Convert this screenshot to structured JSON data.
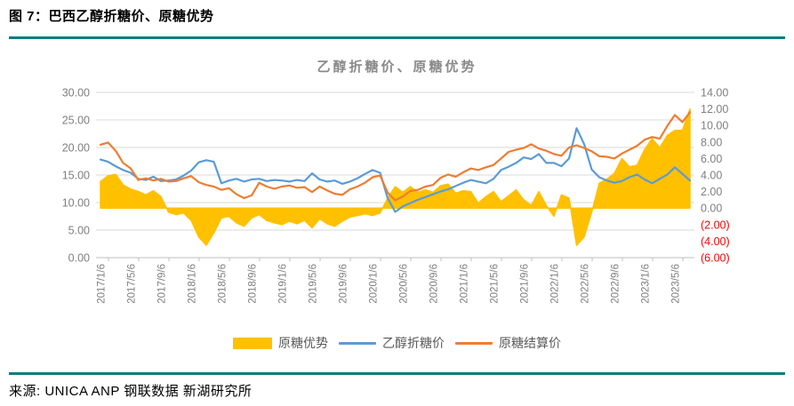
{
  "header": {
    "title": "图 7：巴西乙醇折糖价、原糖优势"
  },
  "footer": {
    "source": "来源: UNICA ANP 钢联数据 新湖研究所"
  },
  "colors": {
    "divider_teal": "#0B7C7B",
    "area_yellow": "#FFC000",
    "line_blue": "#5B9BD5",
    "line_orange": "#ED7D31",
    "gridline": "#D9D9D9",
    "axis_line": "#BFBFBF",
    "axis_text": "#7F7F7F",
    "negative_label_red": "#FF0000",
    "legend_text": "#595959",
    "chart_title_gray": "#8A8A8A"
  },
  "chart_data": {
    "type": "combo",
    "title": "乙醇折糖价、原糖优势",
    "grid": true,
    "legend_position": "bottom",
    "x_start": "2017-01",
    "x_step": "month",
    "x_tick_labels": [
      "2017/1/6",
      "2017/5/6",
      "2017/9/6",
      "2018/1/6",
      "2018/5/6",
      "2018/9/6",
      "2019/1/6",
      "2019/5/6",
      "2019/9/6",
      "2020/1/6",
      "2020/5/6",
      "2020/9/6",
      "2021/1/6",
      "2021/5/6",
      "2021/9/6",
      "2022/1/6",
      "2022/5/6",
      "2022/9/6",
      "2023/1/6",
      "2023/5/6"
    ],
    "left_axis": {
      "min": 0,
      "max": 30,
      "step": 5,
      "tick_labels": [
        "0.00",
        "5.00",
        "10.00",
        "15.00",
        "20.00",
        "25.00",
        "30.00"
      ]
    },
    "right_axis": {
      "min": -6,
      "max": 14,
      "step": 2,
      "tick_labels": [
        "(6.00)",
        "(4.00)",
        "(2.00)",
        "0.00",
        "2.00",
        "4.00",
        "6.00",
        "8.00",
        "10.00",
        "12.00",
        "14.00"
      ],
      "negative_style": "red-parentheses"
    },
    "series": [
      {
        "name": "原糖优势",
        "type": "area",
        "axis": "right",
        "color": "#FFC000",
        "values": [
          3.2,
          3.9,
          4.1,
          2.8,
          2.3,
          2.0,
          1.6,
          2.1,
          1.4,
          -0.5,
          -0.8,
          -0.6,
          -1.5,
          -3.5,
          -4.5,
          -3.0,
          -1.2,
          -1.0,
          -1.8,
          -2.2,
          -1.2,
          -0.8,
          -1.5,
          -1.8,
          -2.0,
          -1.6,
          -1.9,
          -1.5,
          -2.4,
          -1.3,
          -1.9,
          -2.2,
          -1.6,
          -1.1,
          -0.9,
          -0.7,
          -0.9,
          -0.6,
          1.2,
          2.6,
          1.9,
          2.6,
          1.9,
          2.2,
          1.9,
          2.7,
          2.9,
          1.8,
          2.1,
          2.0,
          0.6,
          1.4,
          2.0,
          0.8,
          1.5,
          2.2,
          1.0,
          0.3,
          2.0,
          0.3,
          -1.0,
          1.6,
          1.2,
          -4.5,
          -3.5,
          -0.5,
          3.0,
          3.5,
          4.2,
          6.0,
          5.0,
          5.2,
          7.1,
          8.4,
          7.3,
          8.8,
          9.4,
          9.4,
          12.0
        ]
      },
      {
        "name": "乙醇折糖价",
        "type": "line",
        "axis": "left",
        "color": "#5B9BD5",
        "values": [
          17.8,
          17.4,
          16.6,
          15.9,
          15.4,
          14.3,
          14.1,
          14.7,
          13.9,
          14.0,
          14.2,
          14.9,
          15.8,
          17.3,
          17.7,
          17.4,
          13.5,
          14.0,
          14.3,
          13.8,
          14.2,
          14.3,
          13.9,
          14.1,
          14.0,
          13.8,
          14.1,
          13.9,
          15.3,
          14.2,
          13.8,
          14.0,
          13.4,
          13.8,
          14.4,
          15.2,
          15.9,
          15.4,
          10.8,
          8.3,
          9.3,
          9.9,
          10.5,
          11.0,
          11.5,
          12.0,
          12.4,
          13.0,
          13.6,
          14.1,
          13.8,
          13.5,
          14.3,
          15.9,
          16.5,
          17.2,
          18.2,
          17.9,
          18.8,
          17.2,
          17.2,
          16.6,
          18.0,
          23.5,
          20.6,
          16.0,
          14.6,
          14.0,
          13.6,
          13.9,
          14.6,
          15.1,
          14.2,
          13.5,
          14.3,
          15.1,
          16.4,
          15.2,
          14.0
        ]
      },
      {
        "name": "原糖结算价",
        "type": "line",
        "axis": "left",
        "color": "#ED7D31",
        "values": [
          20.5,
          20.9,
          19.4,
          17.2,
          16.2,
          14.1,
          14.4,
          14.0,
          14.3,
          13.8,
          13.9,
          14.4,
          14.8,
          13.7,
          13.2,
          12.9,
          12.3,
          12.6,
          11.5,
          10.8,
          11.3,
          13.6,
          12.9,
          12.5,
          12.9,
          13.1,
          12.7,
          12.8,
          11.9,
          12.9,
          12.2,
          11.6,
          11.4,
          12.4,
          12.9,
          13.6,
          14.6,
          14.9,
          11.8,
          10.4,
          11.1,
          12.1,
          12.3,
          12.9,
          13.2,
          14.5,
          15.1,
          14.7,
          15.5,
          16.2,
          15.9,
          16.4,
          16.8,
          18.0,
          19.2,
          19.6,
          19.9,
          20.6,
          19.8,
          19.4,
          18.8,
          18.5,
          20.0,
          20.4,
          19.9,
          19.3,
          18.4,
          18.3,
          18.0,
          18.9,
          19.6,
          20.3,
          21.4,
          21.9,
          21.6,
          23.9,
          25.9,
          24.6,
          26.4
        ]
      }
    ]
  }
}
